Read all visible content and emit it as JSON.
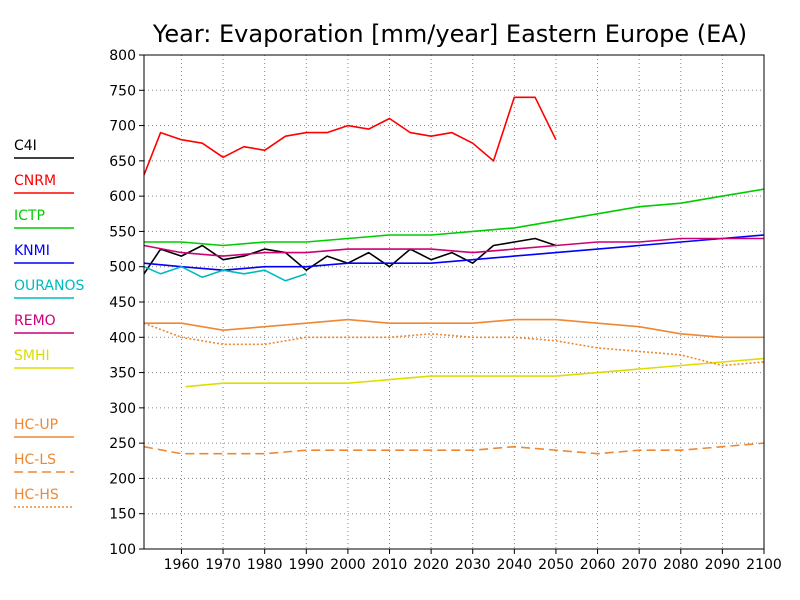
{
  "chart_data": {
    "type": "line",
    "title": "Year: Evaporation [mm/year] Eastern Europe (EA)",
    "xlabel": "",
    "ylabel": "",
    "xlim": [
      1951,
      2100
    ],
    "ylim": [
      100,
      800
    ],
    "xticks": [
      1960,
      1970,
      1980,
      1990,
      2000,
      2010,
      2020,
      2030,
      2040,
      2050,
      2060,
      2070,
      2080,
      2090,
      2100
    ],
    "yticks": [
      100,
      150,
      200,
      250,
      300,
      350,
      400,
      450,
      500,
      550,
      600,
      650,
      700,
      750,
      800
    ],
    "grid": true,
    "legend_position": "left",
    "series": [
      {
        "name": "C4I",
        "color": "#000000",
        "style": "solid",
        "x": [
          1951,
          1955,
          1960,
          1965,
          1970,
          1975,
          1980,
          1985,
          1990,
          1995,
          2000,
          2005,
          2010,
          2015,
          2020,
          2025,
          2030,
          2035,
          2040,
          2045,
          2050
        ],
        "y": [
          490,
          525,
          515,
          530,
          510,
          515,
          525,
          520,
          495,
          515,
          505,
          520,
          500,
          525,
          510,
          520,
          505,
          530,
          535,
          540,
          530
        ]
      },
      {
        "name": "CNRM",
        "color": "#ff0000",
        "style": "solid",
        "x": [
          1951,
          1955,
          1960,
          1965,
          1970,
          1975,
          1980,
          1985,
          1990,
          1995,
          2000,
          2005,
          2010,
          2015,
          2020,
          2025,
          2030,
          2035,
          2040,
          2045,
          2050
        ],
        "y": [
          630,
          690,
          680,
          675,
          655,
          670,
          665,
          685,
          690,
          690,
          700,
          695,
          710,
          690,
          685,
          690,
          675,
          650,
          740,
          740,
          680
        ]
      },
      {
        "name": "ICTP",
        "color": "#00cc00",
        "style": "solid",
        "x": [
          1951,
          1960,
          1970,
          1980,
          1990,
          2000,
          2010,
          2020,
          2030,
          2040,
          2050,
          2060,
          2070,
          2080,
          2090,
          2100
        ],
        "y": [
          535,
          535,
          530,
          535,
          535,
          540,
          545,
          545,
          550,
          555,
          565,
          575,
          585,
          590,
          600,
          610
        ]
      },
      {
        "name": "KNMI",
        "color": "#0000ff",
        "style": "solid",
        "x": [
          1951,
          1960,
          1970,
          1980,
          1990,
          2000,
          2010,
          2020,
          2030,
          2040,
          2050,
          2060,
          2070,
          2080,
          2090,
          2100
        ],
        "y": [
          505,
          500,
          495,
          500,
          500,
          505,
          505,
          505,
          510,
          515,
          520,
          525,
          530,
          535,
          540,
          545
        ]
      },
      {
        "name": "OURANOS",
        "color": "#00bbbb",
        "style": "solid",
        "x": [
          1951,
          1955,
          1960,
          1965,
          1970,
          1975,
          1980,
          1985,
          1990
        ],
        "y": [
          500,
          490,
          500,
          485,
          495,
          490,
          495,
          480,
          490
        ]
      },
      {
        "name": "REMO",
        "color": "#cc0077",
        "style": "solid",
        "x": [
          1951,
          1960,
          1970,
          1980,
          1990,
          2000,
          2010,
          2020,
          2030,
          2040,
          2050,
          2060,
          2070,
          2080,
          2090,
          2100
        ],
        "y": [
          530,
          520,
          515,
          520,
          520,
          525,
          525,
          525,
          520,
          525,
          530,
          535,
          535,
          540,
          540,
          540
        ]
      },
      {
        "name": "SMHI",
        "color": "#dddd00",
        "style": "solid",
        "x": [
          1961,
          1970,
          1980,
          1990,
          2000,
          2010,
          2020,
          2030,
          2040,
          2050,
          2060,
          2070,
          2080,
          2090,
          2100
        ],
        "y": [
          330,
          335,
          335,
          335,
          335,
          340,
          345,
          345,
          345,
          345,
          350,
          355,
          360,
          365,
          370
        ]
      },
      {
        "name": "HC-UP",
        "color": "#ee8833",
        "style": "solid",
        "x": [
          1951,
          1960,
          1970,
          1980,
          1990,
          2000,
          2010,
          2020,
          2030,
          2040,
          2050,
          2060,
          2070,
          2080,
          2090,
          2100
        ],
        "y": [
          420,
          420,
          410,
          415,
          420,
          425,
          420,
          420,
          420,
          425,
          425,
          420,
          415,
          405,
          400,
          400
        ]
      },
      {
        "name": "HC-LS",
        "color": "#ee8833",
        "style": "dashed",
        "x": [
          1951,
          1960,
          1970,
          1980,
          1990,
          2000,
          2010,
          2020,
          2030,
          2040,
          2050,
          2060,
          2070,
          2080,
          2090,
          2100
        ],
        "y": [
          245,
          235,
          235,
          235,
          240,
          240,
          240,
          240,
          240,
          245,
          240,
          235,
          240,
          240,
          245,
          250
        ]
      },
      {
        "name": "HC-HS",
        "color": "#ee8833",
        "style": "dotted",
        "x": [
          1951,
          1960,
          1970,
          1980,
          1990,
          2000,
          2010,
          2020,
          2030,
          2040,
          2050,
          2060,
          2070,
          2080,
          2090,
          2100
        ],
        "y": [
          420,
          400,
          390,
          390,
          400,
          400,
          400,
          405,
          400,
          400,
          395,
          385,
          380,
          375,
          360,
          365
        ]
      }
    ]
  }
}
